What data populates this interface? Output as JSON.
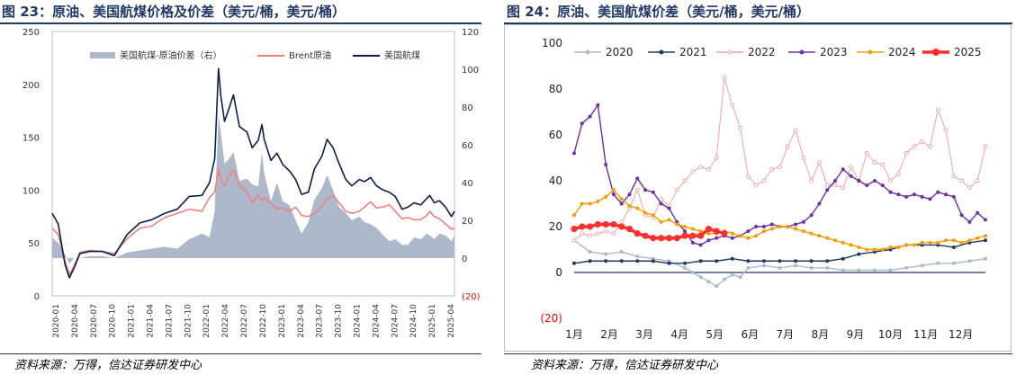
{
  "left": {
    "title": "图 23：原油、美国航煤价格及价差（美元/桶，美元/桶）",
    "source": "资料来源：万得，信达证券研发中心"
  },
  "right": {
    "title": "图 24：原油、美国航煤价差（美元/桶，美元/桶）",
    "source": "资料来源：万得，信达证券研发中心"
  },
  "colors": {
    "title": "#1f3864",
    "spread_area": "#adb9ca",
    "brent": "#f08080",
    "jet": "#0b1f4f",
    "y2020": "#adb9ca",
    "y2021": "#1f3864",
    "y2022": "#f4a0a0",
    "y2023": "#7030a0",
    "y2024": "#f59b00",
    "y2025": "#ff2f2f",
    "negative_label": "#ff0000"
  },
  "chart_data": [
    {
      "type": "area+line",
      "title": "",
      "legend": [
        "美国航煤-原油价差（右）",
        "Brent原油",
        "美国航煤"
      ],
      "legend_position": "top",
      "y_left": {
        "min": 0,
        "max": 250,
        "ticks": [
          "0",
          "50",
          "100",
          "150",
          "200",
          "250"
        ]
      },
      "y_right": {
        "min": -20,
        "max": 120,
        "ticks": [
          "(20)",
          "0",
          "20",
          "40",
          "60",
          "80",
          "100",
          "120"
        ]
      },
      "x_ticks": [
        "2020-01",
        "2020-04",
        "2020-07",
        "2020-10",
        "2021-01",
        "2021-04",
        "2021-07",
        "2021-10",
        "2022-01",
        "2022-04",
        "2022-07",
        "2022-10",
        "2023-01",
        "2023-04",
        "2023-07",
        "2023-10",
        "2024-01",
        "2024-04",
        "2024-07",
        "2024-10",
        "2025-01",
        "2025-04"
      ],
      "x_start": 2020.0,
      "x_end": 2025.37,
      "x": [
        2020.0,
        2020.08,
        2020.17,
        2020.23,
        2020.29,
        2020.37,
        2020.5,
        2020.67,
        2020.83,
        2021.0,
        2021.17,
        2021.33,
        2021.5,
        2021.67,
        2021.83,
        2022.0,
        2022.1,
        2022.17,
        2022.22,
        2022.25,
        2022.3,
        2022.35,
        2022.42,
        2022.5,
        2022.6,
        2022.67,
        2022.75,
        2022.8,
        2022.83,
        2022.92,
        2023.0,
        2023.08,
        2023.17,
        2023.25,
        2023.33,
        2023.42,
        2023.5,
        2023.6,
        2023.67,
        2023.75,
        2023.83,
        2023.92,
        2024.0,
        2024.1,
        2024.17,
        2024.25,
        2024.33,
        2024.42,
        2024.5,
        2024.58,
        2024.67,
        2024.75,
        2024.83,
        2024.92,
        2025.0,
        2025.04,
        2025.1,
        2025.17,
        2025.25,
        2025.33,
        2025.37
      ],
      "series": [
        {
          "name": "Brent原油",
          "axis": "left",
          "values": [
            64,
            58,
            33,
            20,
            28,
            41,
            43,
            42,
            40,
            54,
            64,
            66,
            74,
            78,
            82,
            80,
            93,
            98,
            120,
            110,
            104,
            112,
            119,
            105,
            98,
            88,
            95,
            90,
            93,
            87,
            82,
            83,
            80,
            84,
            76,
            75,
            78,
            85,
            92,
            95,
            88,
            80,
            78,
            80,
            84,
            89,
            83,
            84,
            86,
            80,
            73,
            74,
            72,
            72,
            76,
            80,
            75,
            73,
            68,
            63,
            64
          ]
        },
        {
          "name": "美国航煤",
          "axis": "left",
          "values": [
            78,
            68,
            30,
            17,
            26,
            40,
            42,
            42,
            38,
            58,
            69,
            72,
            78,
            82,
            94,
            95,
            107,
            130,
            215,
            190,
            165,
            175,
            190,
            160,
            155,
            140,
            147,
            162,
            148,
            128,
            135,
            124,
            118,
            110,
            96,
            98,
            120,
            132,
            148,
            140,
            125,
            110,
            104,
            110,
            108,
            112,
            104,
            100,
            98,
            94,
            82,
            84,
            88,
            86,
            92,
            95,
            88,
            90,
            84,
            75,
            80
          ]
        },
        {
          "name": "美国航煤-原油价差（右）",
          "axis": "right",
          "values": [
            11,
            8,
            2,
            -3,
            0,
            0,
            1,
            1,
            0,
            3,
            4,
            5,
            6,
            5,
            10,
            13,
            11,
            25,
            76,
            67,
            50,
            52,
            56,
            41,
            42,
            39,
            38,
            56,
            45,
            30,
            40,
            30,
            28,
            20,
            13,
            19,
            31,
            37,
            44,
            36,
            27,
            24,
            20,
            22,
            19,
            18,
            16,
            12,
            9,
            10,
            7,
            7,
            11,
            10,
            13,
            12,
            10,
            13,
            12,
            9,
            12
          ]
        }
      ]
    },
    {
      "type": "line",
      "title": "",
      "legend": [
        "2020",
        "2021",
        "2022",
        "2023",
        "2024",
        "2025"
      ],
      "legend_position": "top",
      "y": {
        "min": -20,
        "max": 100,
        "ticks": [
          "(20)",
          "0",
          "20",
          "40",
          "60",
          "80",
          "100"
        ]
      },
      "x_ticks": [
        "1月",
        "2月",
        "3月",
        "4月",
        "5月",
        "6月",
        "7月",
        "8月",
        "9月",
        "10月",
        "11月",
        "12月"
      ],
      "x_unit": "week",
      "x_max": 52,
      "series": [
        {
          "name": "2020",
          "x": [
            0,
            2,
            4,
            6,
            8,
            10,
            12,
            14,
            15,
            16,
            17,
            18,
            19,
            20,
            21,
            22,
            24,
            26,
            28,
            30,
            32,
            34,
            36,
            38,
            40,
            42,
            44,
            46,
            48,
            50,
            52
          ],
          "values": [
            14,
            9,
            8,
            9,
            7,
            6,
            5,
            2,
            0,
            -2,
            -4,
            -6,
            -3,
            -1,
            -2,
            2,
            3,
            2,
            3,
            2,
            2,
            1,
            1,
            1,
            1,
            2,
            3,
            4,
            4,
            5,
            6
          ]
        },
        {
          "name": "2021",
          "x": [
            0,
            2,
            4,
            6,
            8,
            10,
            12,
            14,
            16,
            18,
            20,
            22,
            24,
            26,
            28,
            30,
            32,
            34,
            36,
            38,
            40,
            42,
            44,
            46,
            48,
            50,
            52
          ],
          "values": [
            4,
            5,
            5,
            5,
            5,
            5,
            4,
            4,
            5,
            5,
            6,
            5,
            5,
            5,
            5,
            5,
            5,
            6,
            8,
            9,
            10,
            12,
            12,
            12,
            11,
            13,
            14
          ]
        },
        {
          "name": "2022",
          "x": [
            0,
            1,
            2,
            3,
            4,
            5,
            6,
            7,
            8,
            9,
            10,
            11,
            12,
            13,
            14,
            15,
            16,
            17,
            18,
            19,
            20,
            21,
            22,
            23,
            24,
            25,
            26,
            27,
            28,
            29,
            30,
            31,
            32,
            33,
            34,
            35,
            36,
            37,
            38,
            39,
            40,
            41,
            42,
            43,
            44,
            45,
            46,
            47,
            48,
            49,
            50,
            51,
            52
          ],
          "values": [
            14,
            17,
            16,
            17,
            18,
            17,
            22,
            28,
            36,
            25,
            24,
            32,
            29,
            36,
            40,
            44,
            46,
            45,
            50,
            85,
            73,
            63,
            42,
            38,
            40,
            45,
            46,
            55,
            62,
            50,
            40,
            48,
            38,
            38,
            37,
            46,
            40,
            52,
            48,
            47,
            40,
            43,
            52,
            55,
            57,
            55,
            71,
            62,
            42,
            40,
            37,
            40,
            55
          ]
        },
        {
          "name": "2023",
          "x": [
            0,
            1,
            2,
            3,
            4,
            5,
            6,
            7,
            8,
            9,
            10,
            11,
            12,
            13,
            14,
            15,
            16,
            17,
            18,
            19,
            20,
            21,
            22,
            23,
            24,
            25,
            26,
            27,
            28,
            29,
            30,
            31,
            32,
            33,
            34,
            35,
            36,
            37,
            38,
            39,
            40,
            41,
            42,
            43,
            44,
            45,
            46,
            47,
            48,
            49,
            50,
            51,
            52
          ],
          "values": [
            52,
            65,
            68,
            73,
            47,
            34,
            30,
            34,
            41,
            36,
            35,
            30,
            28,
            22,
            18,
            13,
            12,
            14,
            15,
            16,
            15,
            16,
            18,
            20,
            20,
            21,
            20,
            20,
            21,
            22,
            25,
            30,
            36,
            40,
            45,
            42,
            40,
            38,
            40,
            38,
            35,
            34,
            33,
            34,
            33,
            32,
            35,
            34,
            33,
            25,
            22,
            26,
            23
          ]
        },
        {
          "name": "2024",
          "x": [
            0,
            1,
            2,
            3,
            4,
            5,
            6,
            7,
            8,
            9,
            10,
            11,
            12,
            13,
            14,
            15,
            16,
            17,
            18,
            19,
            20,
            21,
            22,
            23,
            24,
            25,
            26,
            27,
            28,
            29,
            30,
            31,
            32,
            33,
            34,
            35,
            36,
            37,
            38,
            39,
            40,
            41,
            42,
            43,
            44,
            45,
            46,
            47,
            48,
            49,
            50,
            51,
            52
          ],
          "values": [
            25,
            30,
            30,
            31,
            33,
            36,
            32,
            29,
            28,
            26,
            25,
            22,
            23,
            21,
            20,
            19,
            18,
            17,
            17,
            18,
            17,
            16,
            15,
            16,
            18,
            19,
            20,
            20,
            19,
            18,
            17,
            16,
            15,
            14,
            13,
            12,
            11,
            10,
            10,
            10,
            11,
            11,
            12,
            12,
            13,
            13,
            13,
            14,
            14,
            13,
            14,
            15,
            16
          ]
        },
        {
          "name": "2025",
          "x": [
            0,
            1,
            2,
            3,
            4,
            5,
            6,
            7,
            8,
            9,
            10,
            11,
            12,
            13,
            14,
            15,
            16,
            17,
            18,
            19
          ],
          "values": [
            19,
            20,
            20,
            21,
            21,
            21,
            20,
            19,
            17,
            16,
            15,
            15,
            15,
            15,
            16,
            16,
            16,
            19,
            18,
            17
          ]
        }
      ]
    }
  ]
}
